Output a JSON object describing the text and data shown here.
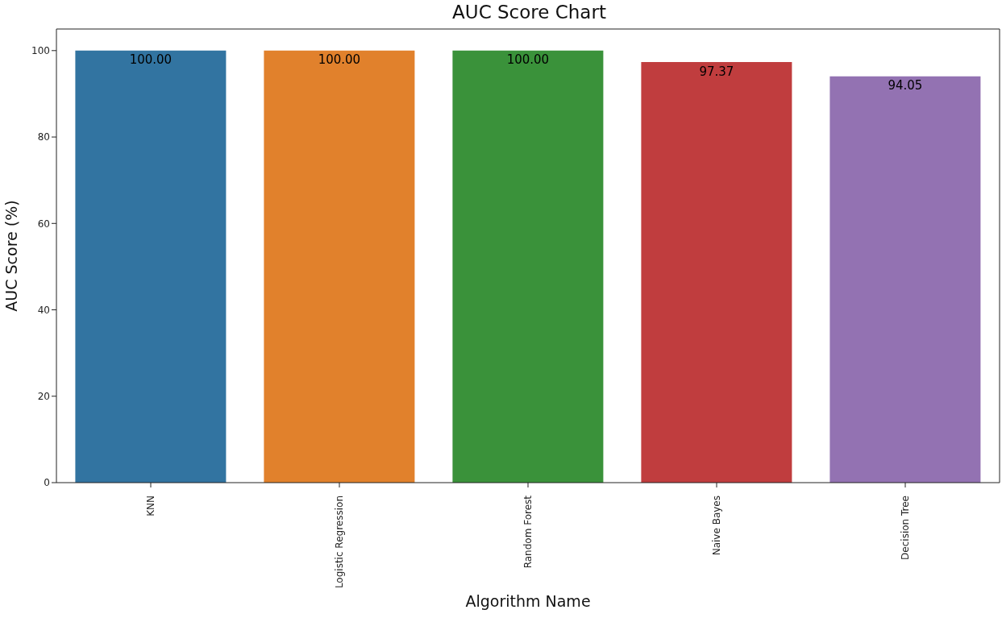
{
  "chart_data": {
    "type": "bar",
    "title": "AUC Score Chart",
    "xlabel": "Algorithm Name",
    "ylabel": "AUC Score (%)",
    "categories": [
      "KNN",
      "Logistic Regression",
      "Random Forest",
      "Naive Bayes",
      "Decision Tree"
    ],
    "values": [
      100,
      100,
      100,
      97.37,
      94.05
    ],
    "colors": [
      "#3274a1",
      "#e1812c",
      "#3a923a",
      "#c03d3e",
      "#9372b2"
    ],
    "value_labels": [
      "100.00",
      "100.00",
      "100.00",
      "97.37",
      "94.05"
    ],
    "ylim": [
      0,
      105
    ],
    "yticks": [
      0,
      20,
      40,
      60,
      80,
      100
    ],
    "grid": false,
    "legend": false
  }
}
